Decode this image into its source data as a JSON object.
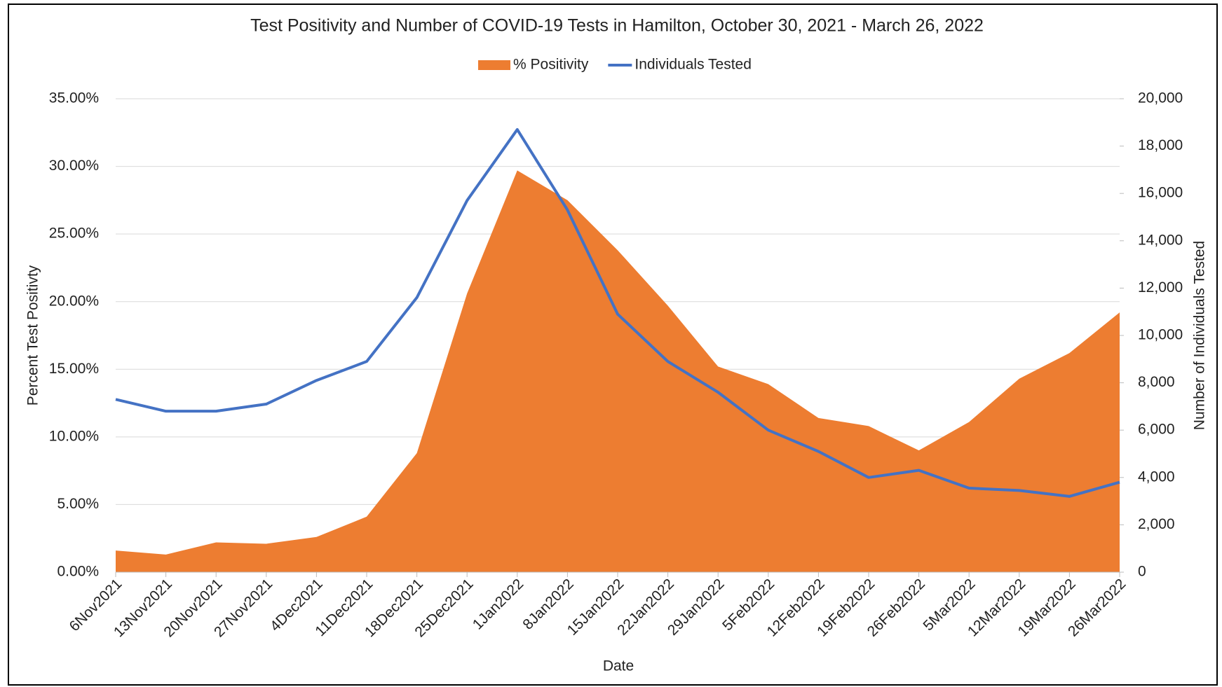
{
  "chart_data": {
    "type": "area-line",
    "title": "Test Positivity and Number of COVID-19 Tests in Hamilton, October 30, 2021 - March 26, 2022",
    "x_label": "Date",
    "y_label": "Percent Test Positivty",
    "y2_label": "Number of Individuals Tested",
    "categories": [
      "6Nov2021",
      "13Nov2021",
      "20Nov2021",
      "27Nov2021",
      "4Dec2021",
      "11Dec2021",
      "18Dec2021",
      "25Dec2021",
      "1Jan2022",
      "8Jan2022",
      "15Jan2022",
      "22Jan2022",
      "29Jan2022",
      "5Feb2022",
      "12Feb2022",
      "19Feb2022",
      "26Feb2022",
      "5Mar2022",
      "12Mar2022",
      "19Mar2022",
      "26Mar2022"
    ],
    "series": [
      {
        "name": "% Positivity",
        "color": "#ed7d31",
        "kind": "area",
        "values": [
          1.6,
          1.3,
          2.2,
          2.1,
          2.6,
          4.1,
          8.8,
          20.6,
          29.7,
          27.5,
          23.8,
          19.7,
          15.2,
          13.9,
          11.4,
          10.8,
          9.0,
          11.1,
          14.3,
          16.2,
          19.2
        ]
      },
      {
        "name": "Individuals Tested",
        "color": "#4472c4",
        "kind": "line",
        "axis": "y2",
        "values": [
          7300,
          6800,
          6800,
          7100,
          8100,
          8900,
          11600,
          15700,
          18700,
          15300,
          10900,
          8900,
          7600,
          6000,
          5100,
          4000,
          4300,
          3550,
          3450,
          3200,
          3800
        ]
      }
    ],
    "ylim": [
      0,
      35
    ],
    "yticks": [
      {
        "value": 0,
        "label": "0.00%"
      },
      {
        "value": 5,
        "label": "5.00%"
      },
      {
        "value": 10,
        "label": "10.00%"
      },
      {
        "value": 15,
        "label": "15.00%"
      },
      {
        "value": 20,
        "label": "20.00%"
      },
      {
        "value": 25,
        "label": "25.00%"
      },
      {
        "value": 30,
        "label": "30.00%"
      },
      {
        "value": 35,
        "label": "35.00%"
      }
    ],
    "y2lim": [
      0,
      20000
    ],
    "y2ticks": [
      0,
      {
        "value": 2000,
        "label": "2,000"
      },
      {
        "value": 4000,
        "label": "4,000"
      },
      {
        "value": 6000,
        "label": "6,000"
      },
      {
        "value": 8000,
        "label": "8,000"
      },
      {
        "value": 10000,
        "label": "10,000"
      },
      {
        "value": 12000,
        "label": "12,000"
      },
      {
        "value": 14000,
        "label": "14,000"
      },
      {
        "value": 16000,
        "label": "16,000"
      },
      {
        "value": 18000,
        "label": "18,000"
      },
      {
        "value": 20000,
        "label": "20,000"
      }
    ],
    "grid": true,
    "legend": "top"
  }
}
